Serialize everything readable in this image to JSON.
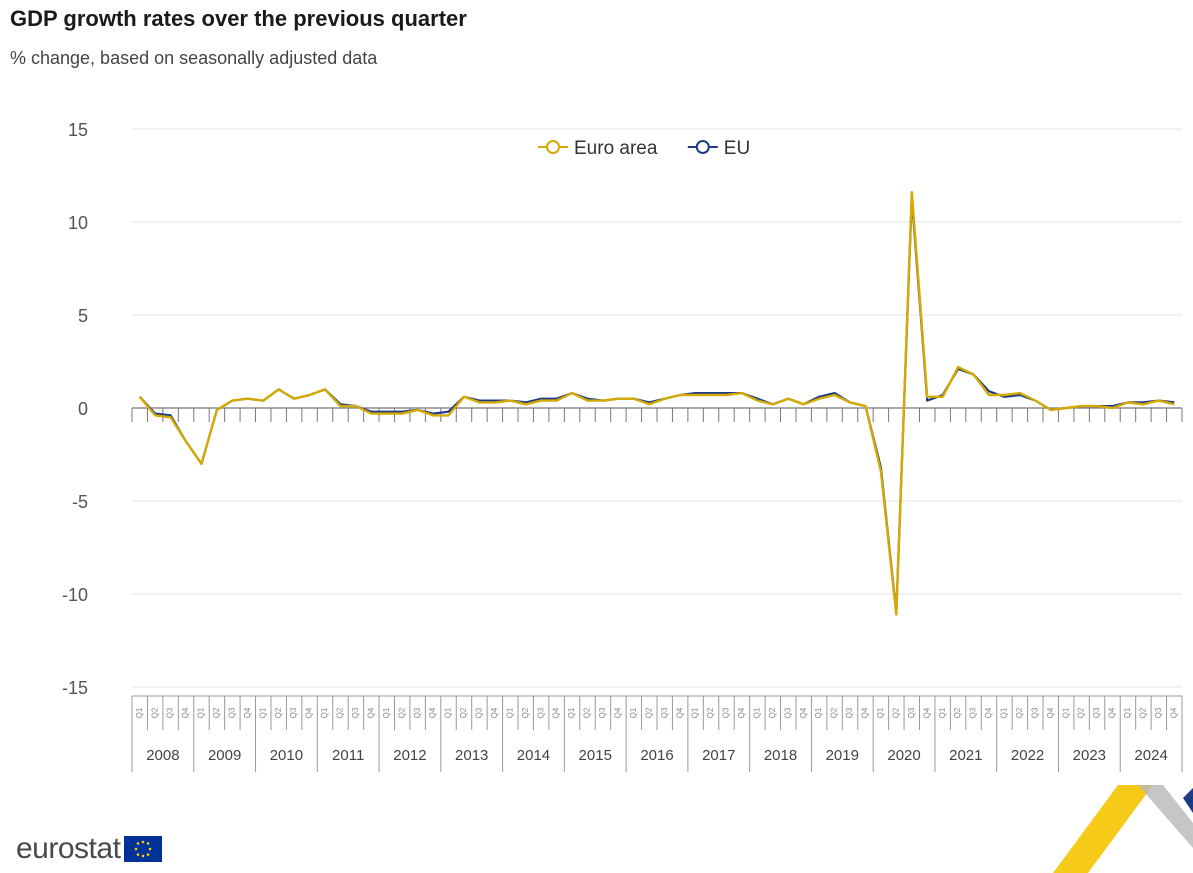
{
  "header": {
    "title": "GDP growth rates over the previous quarter",
    "subtitle": "% change, based on seasonally adjusted data"
  },
  "footer": {
    "brand": "eurostat"
  },
  "colors": {
    "euro_area": "#d4a900",
    "eu": "#1e3b8a",
    "grid": "#e6e6e6",
    "axis": "#777777"
  },
  "chart_data": {
    "type": "line",
    "title": "GDP growth rates over the previous quarter",
    "subtitle": "% change, based on seasonally adjusted data",
    "ylabel": "",
    "ylim": [
      -15,
      15
    ],
    "yticks": [
      15,
      10,
      5,
      0,
      -5,
      -10,
      -15
    ],
    "legend": {
      "placement": "top-center",
      "entries": [
        "Euro area",
        "EU"
      ]
    },
    "years": [
      "2008",
      "2009",
      "2010",
      "2011",
      "2012",
      "2013",
      "2014",
      "2015",
      "2016",
      "2017",
      "2018",
      "2019",
      "2020",
      "2021",
      "2022",
      "2023",
      "2024"
    ],
    "quarters": [
      "Q1",
      "Q2",
      "Q3",
      "Q4"
    ],
    "series": [
      {
        "name": "Euro area",
        "key": "euro_area",
        "values": [
          0.6,
          -0.4,
          -0.5,
          -1.8,
          -3.0,
          -0.1,
          0.4,
          0.5,
          0.4,
          1.0,
          0.5,
          0.7,
          1.0,
          0.1,
          0.1,
          -0.3,
          -0.3,
          -0.3,
          -0.1,
          -0.4,
          -0.4,
          0.6,
          0.3,
          0.3,
          0.4,
          0.2,
          0.4,
          0.4,
          0.8,
          0.4,
          0.4,
          0.5,
          0.5,
          0.2,
          0.5,
          0.7,
          0.7,
          0.7,
          0.7,
          0.8,
          0.4,
          0.2,
          0.5,
          0.2,
          0.5,
          0.7,
          0.3,
          0.1,
          -3.4,
          -11.1,
          11.6,
          0.6,
          0.6,
          2.2,
          1.8,
          0.7,
          0.7,
          0.8,
          0.4,
          -0.1,
          0.0,
          0.1,
          0.1,
          0.0,
          0.3,
          0.2,
          0.4,
          0.2
        ]
      },
      {
        "name": "EU",
        "key": "eu",
        "values": [
          0.6,
          -0.3,
          -0.4,
          -1.8,
          -3.0,
          -0.1,
          0.4,
          0.5,
          0.4,
          1.0,
          0.5,
          0.7,
          1.0,
          0.2,
          0.1,
          -0.2,
          -0.2,
          -0.2,
          -0.1,
          -0.3,
          -0.2,
          0.6,
          0.4,
          0.4,
          0.4,
          0.3,
          0.5,
          0.5,
          0.8,
          0.5,
          0.4,
          0.5,
          0.5,
          0.3,
          0.5,
          0.7,
          0.8,
          0.8,
          0.8,
          0.8,
          0.5,
          0.2,
          0.5,
          0.2,
          0.6,
          0.8,
          0.3,
          0.1,
          -3.2,
          -11.0,
          11.3,
          0.4,
          0.7,
          2.1,
          1.8,
          0.9,
          0.6,
          0.7,
          0.4,
          -0.1,
          0.0,
          0.1,
          0.1,
          0.1,
          0.3,
          0.3,
          0.4,
          0.3
        ]
      }
    ]
  }
}
